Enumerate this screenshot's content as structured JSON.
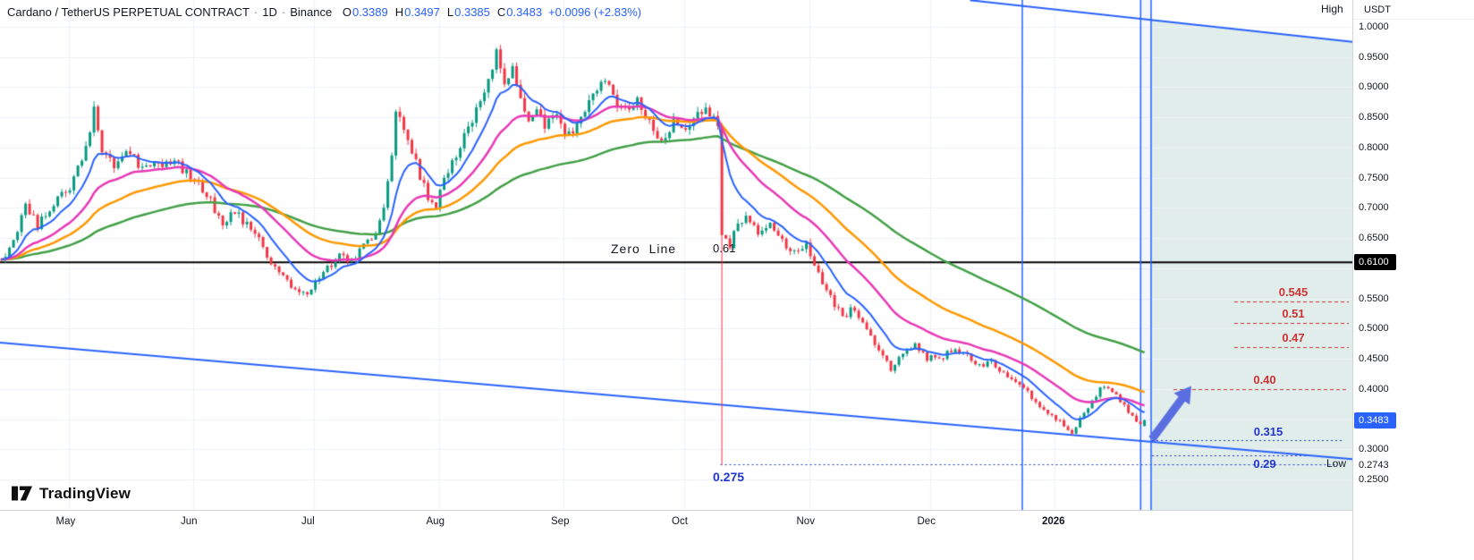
{
  "header": {
    "title": "Cardano / TetherUS PERPETUAL CONTRACT",
    "separator": "·",
    "interval": "1D",
    "exchange": "Binance",
    "ohlc": {
      "o_label": "O",
      "o_value": "0.3389",
      "h_label": "H",
      "h_value": "0.3497",
      "l_label": "L",
      "l_value": "0.3385",
      "c_label": "C",
      "c_value": "0.3483",
      "change": "+0.0096 (+2.83%)"
    }
  },
  "price_axis": {
    "currency": "USDT",
    "ticks": [
      {
        "label": "1.0000",
        "price": 1.0
      },
      {
        "label": "0.9500",
        "price": 0.95
      },
      {
        "label": "0.9000",
        "price": 0.9
      },
      {
        "label": "0.8500",
        "price": 0.85
      },
      {
        "label": "0.8000",
        "price": 0.8
      },
      {
        "label": "0.7500",
        "price": 0.75
      },
      {
        "label": "0.7000",
        "price": 0.7
      },
      {
        "label": "0.6500",
        "price": 0.65
      },
      {
        "label": "0.5500",
        "price": 0.55
      },
      {
        "label": "0.5000",
        "price": 0.5
      },
      {
        "label": "0.4500",
        "price": 0.45
      },
      {
        "label": "0.4000",
        "price": 0.4
      },
      {
        "label": "0.3000",
        "price": 0.3
      },
      {
        "label": "0.2743",
        "price": 0.2743
      },
      {
        "label": "0.2500",
        "price": 0.25
      }
    ],
    "zero_line_badge": {
      "label": "0.6100",
      "price": 0.61
    },
    "last_price_badge": {
      "label": "0.3483",
      "price": 0.3483
    }
  },
  "time_axis": {
    "labels": [
      {
        "label": "May",
        "day": 17
      },
      {
        "label": "Jun",
        "day": 48
      },
      {
        "label": "Jul",
        "day": 78
      },
      {
        "label": "Aug",
        "day": 109
      },
      {
        "label": "Sep",
        "day": 140
      },
      {
        "label": "Oct",
        "day": 170
      },
      {
        "label": "Nov",
        "day": 201
      },
      {
        "label": "Dec",
        "day": 231
      },
      {
        "label": "2026",
        "day": 262,
        "bold": true
      }
    ]
  },
  "annotations": {
    "zero_line": {
      "label": "Zero  Line",
      "price_label": "0.61",
      "price": 0.61
    },
    "crash_level": {
      "label": "0.275",
      "price": 0.275,
      "day": 179
    },
    "resistance_levels": [
      {
        "label": "0.545",
        "price": 0.545
      },
      {
        "label": "0.51",
        "price": 0.51
      },
      {
        "label": "0.47",
        "price": 0.47
      },
      {
        "label": "0.40",
        "price": 0.4,
        "extended": true
      }
    ],
    "support_levels": [
      {
        "label": "0.315",
        "price": 0.315
      },
      {
        "label": "0.29",
        "price": 0.29
      }
    ],
    "high_label": "High",
    "low_label": "Low"
  },
  "logo": {
    "text": "TradingView"
  },
  "colors": {
    "up": "#089981",
    "down": "#f23645",
    "ma_fast": "#2962ff",
    "ma_mid": "#e839b6",
    "ma_slow": "#ff9800",
    "ma_slowest": "#43a047",
    "trendline": "#2962ff",
    "vline": "#2962ff",
    "level_red": "#cc3333",
    "level_blue": "#2336cc",
    "zone_fill": "rgba(61,143,128,0.16)",
    "zero_line": "#000000",
    "arrow": "#5b6ee1",
    "badge_zero": "#000000",
    "badge_last": "#2962ff",
    "text": "#131722"
  },
  "chart_data": {
    "type": "candlestick",
    "title": "Cardano / TetherUS Perpetual, 1D, Binance",
    "x_axis": "time (daily, late Apr 2025 – mid Jan 2026)",
    "y_axis": "price (USDT)",
    "visible_price_range": [
      0.25,
      1.0
    ],
    "key_levels": {
      "zero_line": 0.61,
      "resistance": [
        0.545,
        0.51,
        0.47,
        0.4
      ],
      "support": [
        0.315,
        0.29,
        0.275
      ]
    },
    "last_day": 284,
    "anchors": [
      [
        0,
        0.615
      ],
      [
        3,
        0.64
      ],
      [
        6,
        0.705
      ],
      [
        9,
        0.67
      ],
      [
        13,
        0.71
      ],
      [
        17,
        0.735
      ],
      [
        20,
        0.78
      ],
      [
        23,
        0.86
      ],
      [
        25,
        0.8
      ],
      [
        28,
        0.77
      ],
      [
        31,
        0.8
      ],
      [
        34,
        0.775
      ],
      [
        38,
        0.77
      ],
      [
        42,
        0.78
      ],
      [
        45,
        0.765
      ],
      [
        48,
        0.745
      ],
      [
        52,
        0.71
      ],
      [
        55,
        0.675
      ],
      [
        58,
        0.695
      ],
      [
        61,
        0.67
      ],
      [
        64,
        0.645
      ],
      [
        67,
        0.61
      ],
      [
        70,
        0.585
      ],
      [
        73,
        0.56
      ],
      [
        76,
        0.555
      ],
      [
        78,
        0.58
      ],
      [
        81,
        0.6
      ],
      [
        84,
        0.625
      ],
      [
        87,
        0.61
      ],
      [
        90,
        0.635
      ],
      [
        93,
        0.66
      ],
      [
        95,
        0.7
      ],
      [
        97,
        0.78
      ],
      [
        98,
        0.86
      ],
      [
        100,
        0.825
      ],
      [
        102,
        0.79
      ],
      [
        104,
        0.755
      ],
      [
        106,
        0.72
      ],
      [
        108,
        0.7
      ],
      [
        110,
        0.745
      ],
      [
        113,
        0.785
      ],
      [
        116,
        0.83
      ],
      [
        119,
        0.875
      ],
      [
        121,
        0.91
      ],
      [
        123,
        0.965
      ],
      [
        125,
        0.9
      ],
      [
        127,
        0.935
      ],
      [
        129,
        0.88
      ],
      [
        131,
        0.85
      ],
      [
        133,
        0.87
      ],
      [
        135,
        0.83
      ],
      [
        137,
        0.86
      ],
      [
        139,
        0.835
      ],
      [
        141,
        0.82
      ],
      [
        144,
        0.855
      ],
      [
        147,
        0.885
      ],
      [
        150,
        0.915
      ],
      [
        152,
        0.88
      ],
      [
        155,
        0.86
      ],
      [
        158,
        0.875
      ],
      [
        161,
        0.84
      ],
      [
        164,
        0.815
      ],
      [
        167,
        0.84
      ],
      [
        170,
        0.835
      ],
      [
        173,
        0.865
      ],
      [
        176,
        0.855
      ],
      [
        178,
        0.84
      ],
      [
        179,
        0.655
      ],
      [
        181,
        0.64
      ],
      [
        183,
        0.67
      ],
      [
        185,
        0.685
      ],
      [
        188,
        0.66
      ],
      [
        191,
        0.67
      ],
      [
        194,
        0.645
      ],
      [
        197,
        0.63
      ],
      [
        200,
        0.64
      ],
      [
        203,
        0.59
      ],
      [
        206,
        0.55
      ],
      [
        209,
        0.52
      ],
      [
        212,
        0.535
      ],
      [
        215,
        0.5
      ],
      [
        218,
        0.465
      ],
      [
        221,
        0.435
      ],
      [
        224,
        0.455
      ],
      [
        227,
        0.475
      ],
      [
        230,
        0.45
      ],
      [
        234,
        0.455
      ],
      [
        237,
        0.47
      ],
      [
        240,
        0.455
      ],
      [
        243,
        0.44
      ],
      [
        246,
        0.445
      ],
      [
        249,
        0.425
      ],
      [
        252,
        0.415
      ],
      [
        255,
        0.395
      ],
      [
        258,
        0.37
      ],
      [
        261,
        0.355
      ],
      [
        264,
        0.34
      ],
      [
        266,
        0.328
      ],
      [
        268,
        0.35
      ],
      [
        270,
        0.372
      ],
      [
        272,
        0.39
      ],
      [
        274,
        0.408
      ],
      [
        276,
        0.395
      ],
      [
        278,
        0.382
      ],
      [
        280,
        0.362
      ],
      [
        282,
        0.348
      ],
      [
        283,
        0.3389
      ],
      [
        284,
        0.3483
      ]
    ],
    "crash": {
      "day": 179,
      "low": 0.275,
      "note": "capitulation wick down to 0.275"
    },
    "last_candle": {
      "open": 0.3389,
      "high": 0.3497,
      "low": 0.3385,
      "close": 0.3483
    },
    "moving_averages": [
      {
        "name": "fast",
        "period": 10,
        "color_key": "ma_fast"
      },
      {
        "name": "mid",
        "period": 25,
        "color_key": "ma_mid"
      },
      {
        "name": "slow",
        "period": 45,
        "color_key": "ma_slow"
      },
      {
        "name": "slowest",
        "period": 90,
        "color_key": "ma_slowest"
      }
    ],
    "trendlines": [
      {
        "name": "lower",
        "d1": 0,
        "p1": 0.477,
        "d2": 336,
        "p2": 0.284
      },
      {
        "name": "upper",
        "d1": 241,
        "p1": 1.044,
        "d2": 336,
        "p2": 0.975
      }
    ],
    "vertical_lines_days": [
      254,
      283.4,
      286
    ],
    "projection_zone_start_day": 286,
    "arrow": {
      "from_day": 286.2,
      "from_price": 0.317,
      "to_day": 296,
      "to_price": 0.405
    }
  }
}
